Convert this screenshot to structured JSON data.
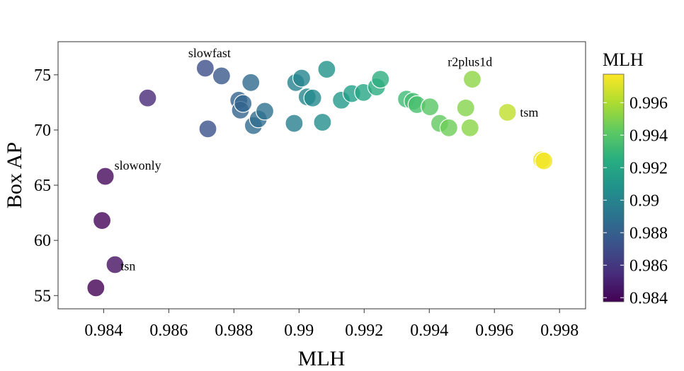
{
  "chart_data": {
    "type": "scatter",
    "xlabel": "MLH",
    "ylabel": "Box AP",
    "xlim": [
      0.9826,
      0.9988
    ],
    "ylim": [
      53.8,
      78.0
    ],
    "xticks": [
      0.984,
      0.986,
      0.988,
      0.99,
      0.992,
      0.994,
      0.996,
      0.998
    ],
    "xtick_labels": [
      "0.984",
      "0.986",
      "0.988",
      "0.99",
      "0.992",
      "0.994",
      "0.996",
      "0.998"
    ],
    "yticks": [
      55,
      60,
      65,
      70,
      75
    ],
    "ytick_labels": [
      "55",
      "60",
      "65",
      "70",
      "75"
    ],
    "grid": false,
    "colorbar": {
      "title": "MLH",
      "range": [
        0.98375,
        0.99775
      ],
      "ticks": [
        0.984,
        0.986,
        0.988,
        0.99,
        0.992,
        0.994,
        0.996
      ],
      "tick_labels": [
        "0.984",
        "0.986",
        "0.988",
        "0.99",
        "0.992",
        "0.994",
        "0.996"
      ],
      "colormap": "viridis"
    },
    "points": [
      {
        "x": 0.98376,
        "y": 55.7
      },
      {
        "x": 0.98395,
        "y": 61.8
      },
      {
        "x": 0.98405,
        "y": 65.8
      },
      {
        "x": 0.98435,
        "y": 57.8
      },
      {
        "x": 0.98535,
        "y": 72.9
      },
      {
        "x": 0.98712,
        "y": 75.6
      },
      {
        "x": 0.9872,
        "y": 70.1
      },
      {
        "x": 0.98762,
        "y": 74.9
      },
      {
        "x": 0.98815,
        "y": 72.7
      },
      {
        "x": 0.9882,
        "y": 71.8
      },
      {
        "x": 0.98828,
        "y": 72.4
      },
      {
        "x": 0.98852,
        "y": 74.3
      },
      {
        "x": 0.9886,
        "y": 70.4
      },
      {
        "x": 0.98875,
        "y": 71.0
      },
      {
        "x": 0.98895,
        "y": 71.7
      },
      {
        "x": 0.98985,
        "y": 70.6
      },
      {
        "x": 0.9899,
        "y": 74.3
      },
      {
        "x": 0.99008,
        "y": 74.7
      },
      {
        "x": 0.99025,
        "y": 73.0
      },
      {
        "x": 0.99042,
        "y": 72.9
      },
      {
        "x": 0.99072,
        "y": 70.7
      },
      {
        "x": 0.99085,
        "y": 75.5
      },
      {
        "x": 0.9913,
        "y": 72.7
      },
      {
        "x": 0.99162,
        "y": 73.3
      },
      {
        "x": 0.99198,
        "y": 73.4
      },
      {
        "x": 0.99238,
        "y": 73.9
      },
      {
        "x": 0.9925,
        "y": 74.6
      },
      {
        "x": 0.9933,
        "y": 72.8
      },
      {
        "x": 0.9935,
        "y": 72.6
      },
      {
        "x": 0.99362,
        "y": 72.3
      },
      {
        "x": 0.99402,
        "y": 72.1
      },
      {
        "x": 0.99432,
        "y": 70.6
      },
      {
        "x": 0.9946,
        "y": 70.2
      },
      {
        "x": 0.99512,
        "y": 72.0
      },
      {
        "x": 0.99525,
        "y": 70.2
      },
      {
        "x": 0.99532,
        "y": 74.6
      },
      {
        "x": 0.9964,
        "y": 71.6
      },
      {
        "x": 0.99745,
        "y": 67.3
      },
      {
        "x": 0.99752,
        "y": 67.2
      }
    ],
    "annotations": [
      {
        "text": "slowfast",
        "x": 0.98725,
        "y": 76.6
      },
      {
        "text": "slowonly",
        "x": 0.98505,
        "y": 66.4
      },
      {
        "text": "tsn",
        "x": 0.98475,
        "y": 57.3
      },
      {
        "text": "r2plus1d",
        "x": 0.99525,
        "y": 75.8
      },
      {
        "text": "tsm",
        "x": 0.99707,
        "y": 71.2
      }
    ]
  }
}
